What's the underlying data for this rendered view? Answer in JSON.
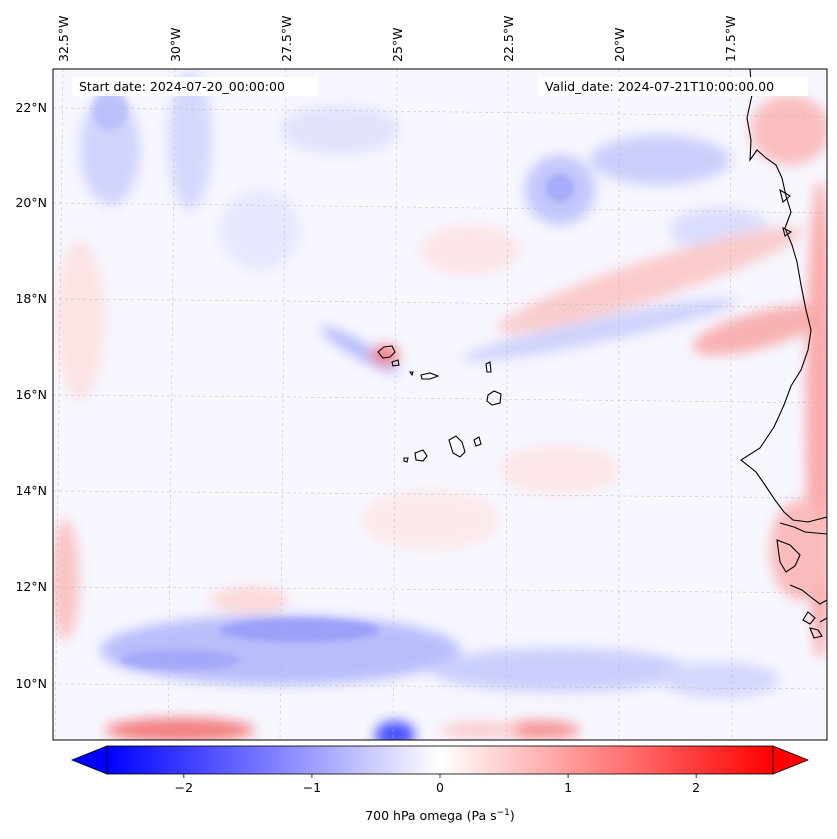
{
  "annotations": {
    "start_date": "Start date: 2024-07-20_00:00:00",
    "valid_date": "Valid_date: 2024-07-21T10:00:00.00"
  },
  "map": {
    "top_lon_labels": [
      "32.5°W",
      "30°W",
      "27.5°W",
      "25°W",
      "22.5°W",
      "20°W",
      "17.5°W"
    ],
    "left_lat_labels": [
      "22°N",
      "20°N",
      "18°N",
      "16°N",
      "14°N",
      "12°N",
      "10°N"
    ],
    "field": "700 hPa omega"
  },
  "colorbar": {
    "ticks": [
      "−2",
      "−1",
      "0",
      "1",
      "2"
    ],
    "label_main": "700 hPa omega (Pa s",
    "label_exp": "−1",
    "label_end": ")",
    "vmin": -2.6,
    "vmax": 2.6,
    "tick_values": [
      -2,
      -1,
      0,
      1,
      2
    ],
    "low_color": "#0000ff",
    "mid_color": "#ffffff",
    "high_color": "#ff0000"
  }
}
